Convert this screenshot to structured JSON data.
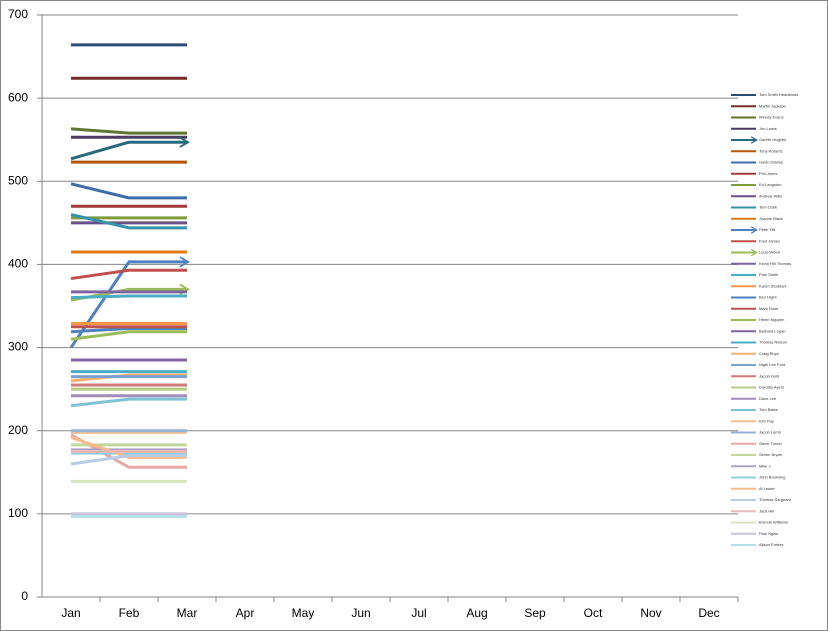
{
  "chart_data": {
    "type": "line",
    "categories": [
      "Jan",
      "Feb",
      "Mar",
      "Apr",
      "May",
      "Jun",
      "Jul",
      "Aug",
      "Sep",
      "Oct",
      "Nov",
      "Dec"
    ],
    "ylim": [
      0,
      700
    ],
    "yticks": [
      0,
      100,
      200,
      300,
      400,
      500,
      600,
      700
    ],
    "grid": true,
    "legend": "right",
    "series": [
      {
        "name": "Tom Smith Headshots",
        "color": "#2C4D75",
        "values": [
          664,
          664,
          664,
          null,
          null,
          null,
          null,
          null,
          null,
          null,
          null,
          null
        ]
      },
      {
        "name": "Martin Jackson",
        "color": "#772C2A",
        "values": [
          624,
          624,
          624,
          null,
          null,
          null,
          null,
          null,
          null,
          null,
          null,
          null
        ]
      },
      {
        "name": "Wendy Evans",
        "color": "#5F7530",
        "values": [
          563,
          558,
          558,
          null,
          null,
          null,
          null,
          null,
          null,
          null,
          null,
          null
        ]
      },
      {
        "name": "Jon Lewis",
        "color": "#4D3B62",
        "values": [
          553,
          553,
          553,
          null,
          null,
          null,
          null,
          null,
          null,
          null,
          null,
          null
        ]
      },
      {
        "name": "Gareth Hughes",
        "color": "#276A7C",
        "end_arrow": true,
        "values": [
          527,
          547,
          547,
          null,
          null,
          null,
          null,
          null,
          null,
          null,
          null,
          null
        ]
      },
      {
        "name": "Tony Roberts",
        "color": "#B65708",
        "values": [
          523,
          523,
          523,
          null,
          null,
          null,
          null,
          null,
          null,
          null,
          null,
          null
        ]
      },
      {
        "name": "Gavin Davies",
        "color": "#3C6DA8",
        "values": [
          497,
          480,
          480,
          null,
          null,
          null,
          null,
          null,
          null,
          null,
          null,
          null
        ]
      },
      {
        "name": "Phil Jones",
        "color": "#A33B38",
        "values": [
          470,
          470,
          470,
          null,
          null,
          null,
          null,
          null,
          null,
          null,
          null,
          null
        ]
      },
      {
        "name": "Ed Langston",
        "color": "#7E9C3E",
        "values": [
          456,
          456,
          456,
          null,
          null,
          null,
          null,
          null,
          null,
          null,
          null,
          null
        ]
      },
      {
        "name": "Andrew Wills",
        "color": "#684F87",
        "values": [
          450,
          450,
          450,
          null,
          null,
          null,
          null,
          null,
          null,
          null,
          null,
          null
        ]
      },
      {
        "name": "Tom Clark",
        "color": "#3493AB",
        "values": [
          460,
          444,
          444,
          null,
          null,
          null,
          null,
          null,
          null,
          null,
          null,
          null
        ]
      },
      {
        "name": "Joanne Black",
        "color": "#E07A10",
        "values": [
          415,
          415,
          415,
          null,
          null,
          null,
          null,
          null,
          null,
          null,
          null,
          null
        ]
      },
      {
        "name": "Peter Hill",
        "color": "#4F81BD",
        "end_arrow": true,
        "values": [
          300,
          403,
          403,
          null,
          null,
          null,
          null,
          null,
          null,
          null,
          null,
          null
        ]
      },
      {
        "name": "Fred James",
        "color": "#C0504D",
        "values": [
          383,
          393,
          393,
          null,
          null,
          null,
          null,
          null,
          null,
          null,
          null,
          null
        ]
      },
      {
        "name": "Lucie Wood",
        "color": "#9BBB59",
        "end_arrow": true,
        "values": [
          357,
          370,
          370,
          null,
          null,
          null,
          null,
          null,
          null,
          null,
          null,
          null
        ]
      },
      {
        "name": "Kevin Hill Thomas",
        "color": "#8064A2",
        "values": [
          367,
          367,
          367,
          null,
          null,
          null,
          null,
          null,
          null,
          null,
          null,
          null
        ]
      },
      {
        "name": "Paul Smith",
        "color": "#4BACC6",
        "values": [
          360,
          362,
          362,
          null,
          null,
          null,
          null,
          null,
          null,
          null,
          null,
          null
        ]
      },
      {
        "name": "Karen Stoddart",
        "color": "#F79646",
        "values": [
          329,
          329,
          329,
          null,
          null,
          null,
          null,
          null,
          null,
          null,
          null,
          null
        ]
      },
      {
        "name": "Ben Hight",
        "color": "#4F81BD",
        "values": [
          319,
          323,
          323,
          null,
          null,
          null,
          null,
          null,
          null,
          null,
          null,
          null
        ]
      },
      {
        "name": "Mark Rose",
        "color": "#C0504D",
        "values": [
          325,
          325,
          325,
          null,
          null,
          null,
          null,
          null,
          null,
          null,
          null,
          null
        ]
      },
      {
        "name": "Helen Nguyen",
        "color": "#9BBB59",
        "values": [
          310,
          319,
          319,
          null,
          null,
          null,
          null,
          null,
          null,
          null,
          null,
          null
        ]
      },
      {
        "name": "Barbara Logan",
        "color": "#8064A2",
        "values": [
          285,
          285,
          285,
          null,
          null,
          null,
          null,
          null,
          null,
          null,
          null,
          null
        ]
      },
      {
        "name": "Thomas Nelson",
        "color": "#4BACC6",
        "values": [
          271,
          271,
          271,
          null,
          null,
          null,
          null,
          null,
          null,
          null,
          null,
          null
        ]
      },
      {
        "name": "Craig Rhys",
        "color": "#F9B072",
        "values": [
          260,
          267,
          267,
          null,
          null,
          null,
          null,
          null,
          null,
          null,
          null,
          null
        ]
      },
      {
        "name": "Nigel Lee Ford",
        "color": "#7BA0CD",
        "values": [
          265,
          265,
          265,
          null,
          null,
          null,
          null,
          null,
          null,
          null,
          null,
          null
        ]
      },
      {
        "name": "Jacob Gold",
        "color": "#D07B79",
        "values": [
          255,
          255,
          255,
          null,
          null,
          null,
          null,
          null,
          null,
          null,
          null,
          null
        ]
      },
      {
        "name": "Dorothy Ayers",
        "color": "#B4CC83",
        "values": [
          250,
          250,
          250,
          null,
          null,
          null,
          null,
          null,
          null,
          null,
          null,
          null
        ]
      },
      {
        "name": "Dave Lee",
        "color": "#A08BBA",
        "values": [
          242,
          242,
          242,
          null,
          null,
          null,
          null,
          null,
          null,
          null,
          null,
          null
        ]
      },
      {
        "name": "Tom Bates",
        "color": "#7FC2D5",
        "values": [
          230,
          238,
          238,
          null,
          null,
          null,
          null,
          null,
          null,
          null,
          null,
          null
        ]
      },
      {
        "name": "Kim Pay",
        "color": "#FABF8F",
        "values": [
          198,
          198,
          198,
          null,
          null,
          null,
          null,
          null,
          null,
          null,
          null,
          null
        ]
      },
      {
        "name": "Jacob Lamb",
        "color": "#95B3D7",
        "values": [
          200,
          200,
          200,
          null,
          null,
          null,
          null,
          null,
          null,
          null,
          null,
          null
        ]
      },
      {
        "name": "Steve Turner",
        "color": "#E6A9A8",
        "values": [
          195,
          156,
          156,
          null,
          null,
          null,
          null,
          null,
          null,
          null,
          null,
          null
        ]
      },
      {
        "name": "Simon Bryan",
        "color": "#C4D79B",
        "values": [
          183,
          183,
          183,
          null,
          null,
          null,
          null,
          null,
          null,
          null,
          null,
          null
        ]
      },
      {
        "name": "Mike J",
        "color": "#B1A0C7",
        "values": [
          177,
          177,
          177,
          null,
          null,
          null,
          null,
          null,
          null,
          null,
          null,
          null
        ]
      },
      {
        "name": "John Browning",
        "color": "#92CDDC",
        "values": [
          173,
          173,
          173,
          null,
          null,
          null,
          null,
          null,
          null,
          null,
          null,
          null
        ]
      },
      {
        "name": "Al Lester",
        "color": "#FAB98A",
        "values": [
          192,
          168,
          168,
          null,
          null,
          null,
          null,
          null,
          null,
          null,
          null,
          null
        ]
      },
      {
        "name": "Thomas Sargeant",
        "color": "#B8CCE4",
        "values": [
          160,
          170,
          170,
          null,
          null,
          null,
          null,
          null,
          null,
          null,
          null,
          null
        ]
      },
      {
        "name": "Jack Hill",
        "color": "#E6B9B8",
        "values": [
          175,
          175,
          175,
          null,
          null,
          null,
          null,
          null,
          null,
          null,
          null,
          null
        ]
      },
      {
        "name": "Brenda Williams",
        "color": "#D7E4BD",
        "values": [
          139,
          139,
          139,
          null,
          null,
          null,
          null,
          null,
          null,
          null,
          null,
          null
        ]
      },
      {
        "name": "Paul Ngwe",
        "color": "#CCC0DA",
        "values": [
          100,
          100,
          100,
          null,
          null,
          null,
          null,
          null,
          null,
          null,
          null,
          null
        ]
      },
      {
        "name": "Alison Forbes",
        "color": "#B7DEE8",
        "values": [
          97,
          97,
          97,
          null,
          null,
          null,
          null,
          null,
          null,
          null,
          null,
          null
        ]
      }
    ]
  }
}
